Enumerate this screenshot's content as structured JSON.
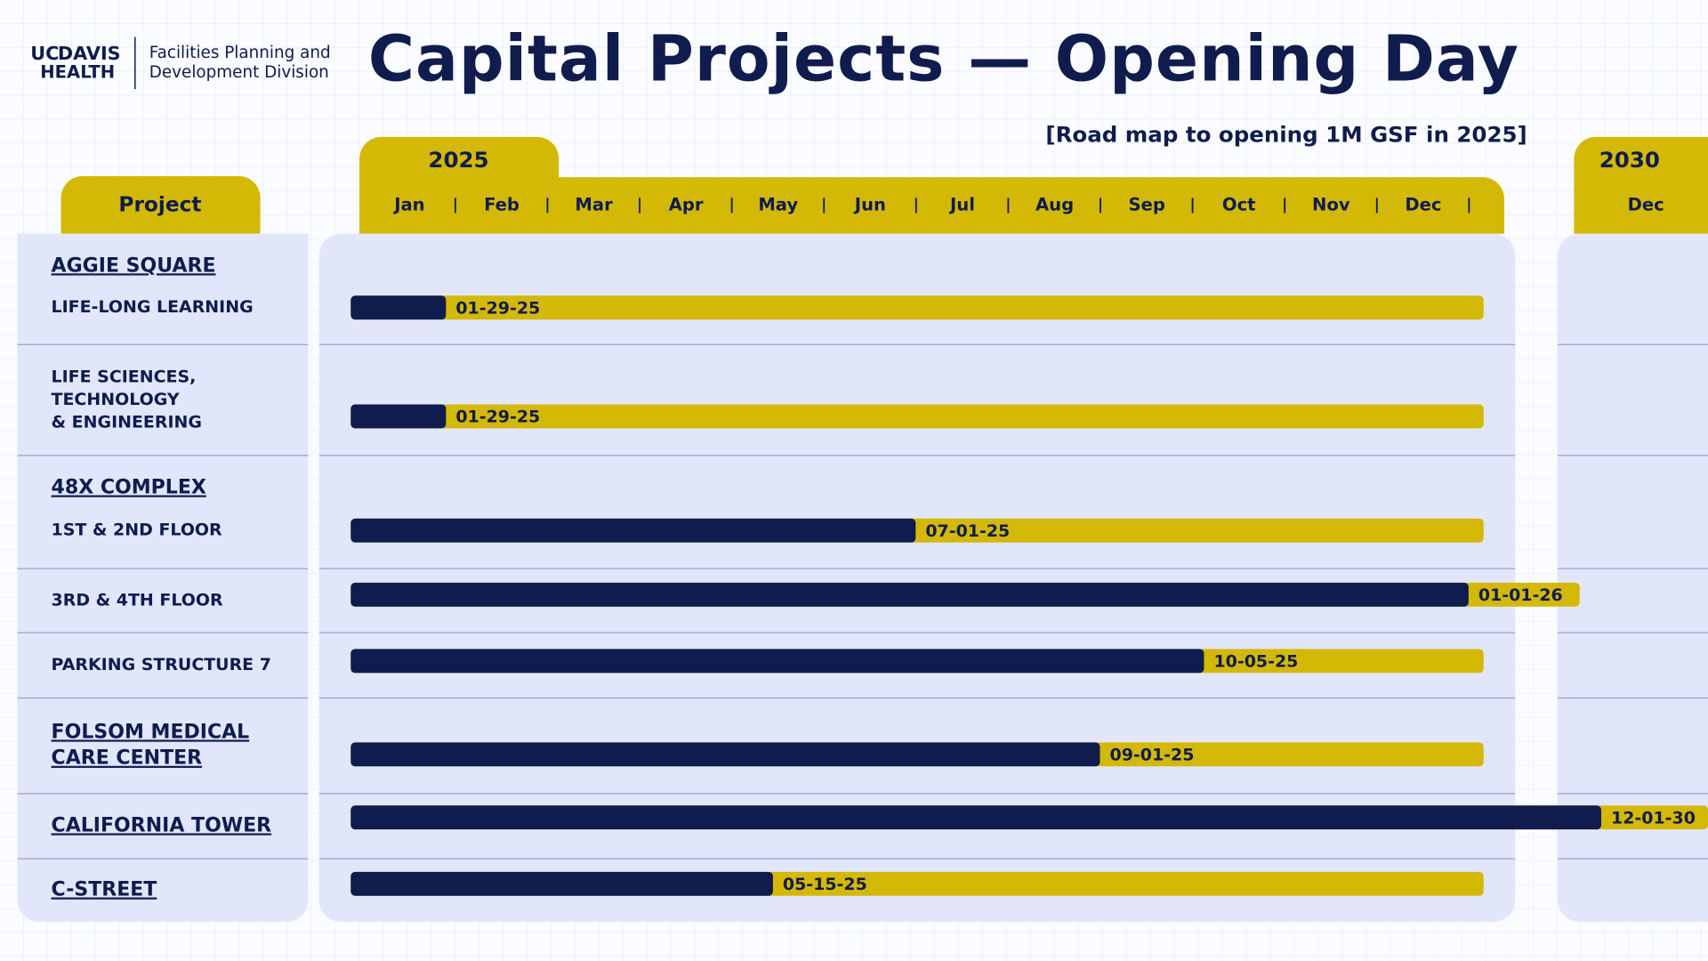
{
  "logo": {
    "uc": "UC",
    "davis": "DAVIS",
    "health": "HEALTH",
    "division": [
      "Facilities Planning and",
      "Development Division"
    ]
  },
  "chart_data": {
    "type": "gantt",
    "title": "Capital Projects — Opening Day",
    "subtitle": "[Road map to opening 1M GSF in 2025]",
    "row_header": "Project",
    "periods": [
      {
        "year": "2025",
        "months": [
          "Jan",
          "Feb",
          "Mar",
          "Apr",
          "May",
          "Jun",
          "Jul",
          "Aug",
          "Sep",
          "Oct",
          "Nov",
          "Dec"
        ]
      },
      {
        "year": "2030",
        "months": [
          "Dec"
        ]
      }
    ],
    "rows": [
      {
        "heading": [
          "AGGIE SQUARE"
        ],
        "name": [
          "LIFE-LONG LEARNING"
        ],
        "date": "01-29-25"
      },
      {
        "heading": [],
        "name": [
          "LIFE SCIENCES,",
          "TECHNOLOGY",
          "& ENGINEERING"
        ],
        "date": "01-29-25"
      },
      {
        "heading": [
          "48X COMPLEX"
        ],
        "name": [
          "1ST & 2ND FLOOR"
        ],
        "date": "07-01-25"
      },
      {
        "heading": [],
        "name": [
          "3RD & 4TH FLOOR"
        ],
        "date": "01-01-26"
      },
      {
        "heading": [],
        "name": [
          "PARKING STRUCTURE 7"
        ],
        "date": "10-05-25"
      },
      {
        "heading": [
          "FOLSOM MEDICAL",
          "CARE CENTER"
        ],
        "name": [],
        "date": "09-01-25"
      },
      {
        "heading": [
          "CALIFORNIA TOWER"
        ],
        "name": [],
        "date": "12-01-30"
      },
      {
        "heading": [
          "C-STREET"
        ],
        "name": [],
        "date": "05-15-25"
      }
    ]
  }
}
